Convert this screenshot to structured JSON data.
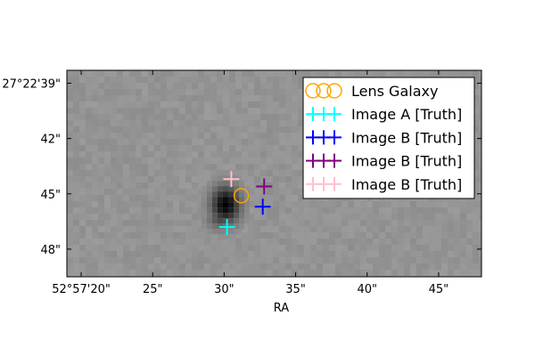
{
  "chart_data": {
    "type": "scatter",
    "title": "",
    "xlabel": "RA",
    "ylabel": "",
    "image": "grayscale sky cutout (lens system near center)",
    "xlim": [
      19.0,
      48.0
    ],
    "ylim": [
      38.3,
      49.5
    ],
    "x_ticks": [
      {
        "value": 20,
        "label": "52°57'20\""
      },
      {
        "value": 25,
        "label": "25\""
      },
      {
        "value": 30,
        "label": "30\""
      },
      {
        "value": 35,
        "label": "35\""
      },
      {
        "value": 40,
        "label": "40\""
      },
      {
        "value": 45,
        "label": "45\""
      }
    ],
    "y_ticks": [
      {
        "value": 39,
        "label": "27°22'39\""
      },
      {
        "value": 42,
        "label": "42\""
      },
      {
        "value": 45,
        "label": "45\""
      },
      {
        "value": 48,
        "label": "48\""
      }
    ],
    "series": [
      {
        "name": "Lens Galaxy",
        "marker": "circle",
        "color": "#FFA500",
        "points": [
          [
            31.2,
            45.1
          ]
        ]
      },
      {
        "name": "Image A [Truth]",
        "marker": "plus",
        "color": "#00FFFF",
        "points": [
          [
            30.2,
            46.8
          ]
        ]
      },
      {
        "name": "Image B [Truth]",
        "marker": "plus",
        "color": "#0000FF",
        "points": [
          [
            32.7,
            45.7
          ]
        ]
      },
      {
        "name": "Image B [Truth]",
        "marker": "plus",
        "color": "#800080",
        "points": [
          [
            32.8,
            44.6
          ]
        ]
      },
      {
        "name": "Image B [Truth]",
        "marker": "plus",
        "color": "#FFC0CB",
        "points": [
          [
            30.5,
            44.2
          ]
        ]
      }
    ],
    "legend_position": "top-right",
    "grid": false
  }
}
